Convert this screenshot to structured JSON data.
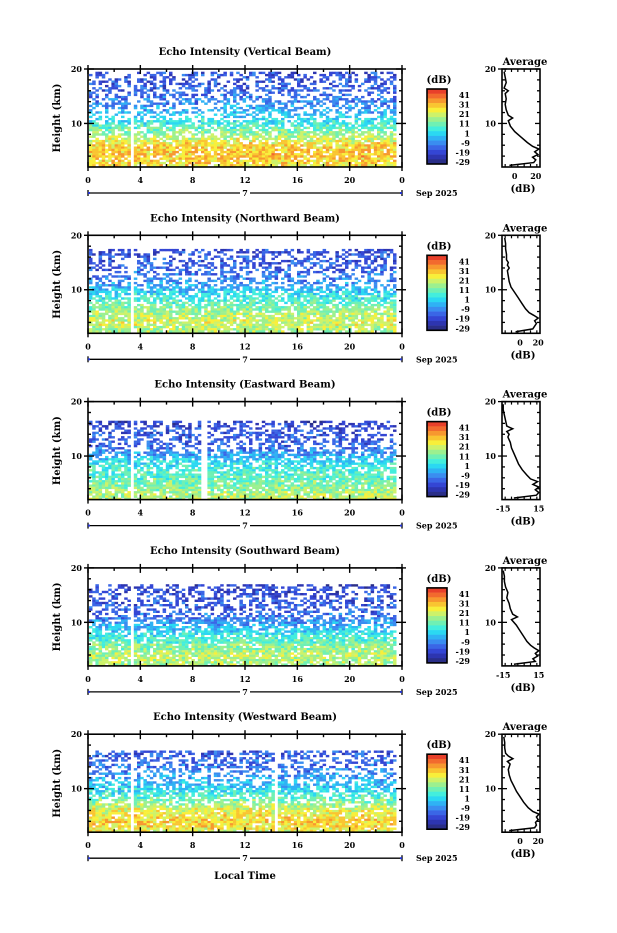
{
  "figure": {
    "x_axis_label": "Local Time",
    "date_label": "Sep 2025",
    "day_label": "7",
    "y_axis_label": "Height (km)",
    "colorbar_unit": "(dB)",
    "colorbar_ticks": [
      "41",
      "31",
      "21",
      "11",
      "1",
      "-9",
      "-19",
      "-29"
    ],
    "colorbar_colors": [
      "#e8402a",
      "#f26a2e",
      "#f7982f",
      "#f9c531",
      "#f8ef3a",
      "#cdf26a",
      "#9cf08f",
      "#6ff0b4",
      "#43eedd",
      "#2bd8f2",
      "#2fb2f4",
      "#3a8df0",
      "#3a66e6",
      "#3446d4",
      "#2d35b0",
      "#2a2e88"
    ],
    "average_title": "Average",
    "average_xlabel": "(dB)"
  },
  "chart_data": [
    {
      "type": "heatmap",
      "title": "Echo Intensity (Vertical Beam)",
      "xlabel": "",
      "ylabel": "Height (km)",
      "xlim": [
        0,
        24
      ],
      "ylim": [
        2,
        20
      ],
      "x_ticks": [
        "0",
        "4",
        "8",
        "12",
        "16",
        "20",
        "0"
      ],
      "y_ticks": [
        "10",
        "20"
      ],
      "zlim": [
        -29,
        41
      ],
      "gap_hours": [
        3.3
      ],
      "profile_db": [
        [
          2.5,
          22
        ],
        [
          4,
          26
        ],
        [
          6,
          24
        ],
        [
          8,
          14
        ],
        [
          10,
          4
        ],
        [
          12,
          -4
        ],
        [
          14,
          -10
        ],
        [
          16,
          -14
        ],
        [
          18,
          -16
        ]
      ],
      "top_km": 19.5,
      "avg": {
        "xticks": [
          "0",
          "20"
        ],
        "xlim": [
          -12,
          24
        ],
        "height_km": [
          2.3,
          2.8,
          3.3,
          3.8,
          4.3,
          4.8,
          5.3,
          5.8,
          6.5,
          7.5,
          8.5,
          9.5,
          10.5,
          11.0,
          11.5,
          12.5,
          13.5,
          14.5,
          15.5,
          16.0,
          16.5,
          17.5,
          18.5,
          19.5
        ],
        "values_db": [
          -5,
          18,
          20,
          17,
          22,
          19,
          23,
          17,
          12,
          6,
          0,
          -4,
          -6,
          -2,
          -6,
          -8,
          -9,
          -8,
          -9,
          -6,
          -10,
          -8,
          -9,
          -10
        ]
      }
    },
    {
      "type": "heatmap",
      "title": "Echo Intensity (Northward Beam)",
      "xlabel": "",
      "ylabel": "Height (km)",
      "xlim": [
        0,
        24
      ],
      "ylim": [
        2,
        20
      ],
      "x_ticks": [
        "0",
        "4",
        "8",
        "12",
        "16",
        "20",
        "0"
      ],
      "y_ticks": [
        "10",
        "20"
      ],
      "zlim": [
        -29,
        41
      ],
      "gap_hours": [
        3.3
      ],
      "profile_db": [
        [
          2.5,
          14
        ],
        [
          4,
          18
        ],
        [
          6,
          14
        ],
        [
          8,
          6
        ],
        [
          10,
          -2
        ],
        [
          12,
          -10
        ],
        [
          14,
          -14
        ],
        [
          16,
          -16
        ],
        [
          18,
          -18
        ]
      ],
      "top_km": 17.5,
      "avg": {
        "xticks": [
          "0",
          "20"
        ],
        "xlim": [
          -20,
          22
        ],
        "height_km": [
          2.3,
          2.8,
          3.3,
          3.8,
          4.3,
          4.8,
          5.3,
          5.8,
          6.5,
          7.5,
          8.5,
          9.5,
          10.5,
          11.5,
          12.5,
          13.5,
          14.0,
          14.5,
          15.0,
          15.5,
          16.5,
          17.5,
          18.5,
          19.5
        ],
        "values_db": [
          -5,
          14,
          16,
          18,
          16,
          20,
          15,
          10,
          6,
          2,
          -2,
          -6,
          -10,
          -12,
          -13,
          -14,
          -12,
          -14,
          -13,
          -15,
          -15,
          -16,
          -16,
          -17
        ]
      }
    },
    {
      "type": "heatmap",
      "title": "Echo Intensity (Eastward Beam)",
      "xlabel": "",
      "ylabel": "Height (km)",
      "xlim": [
        0,
        24
      ],
      "ylim": [
        2,
        20
      ],
      "x_ticks": [
        "0",
        "4",
        "8",
        "12",
        "16",
        "20",
        "0"
      ],
      "y_ticks": [
        "10",
        "20"
      ],
      "zlim": [
        -29,
        41
      ],
      "gap_hours": [
        3.3,
        8.8
      ],
      "profile_db": [
        [
          2.5,
          16
        ],
        [
          4,
          12
        ],
        [
          6,
          8
        ],
        [
          8,
          4
        ],
        [
          10,
          -4
        ],
        [
          12,
          -14
        ],
        [
          14,
          -16
        ],
        [
          16,
          -18
        ],
        [
          18,
          -24
        ]
      ],
      "top_km": 16.5,
      "avg": {
        "xticks": [
          "-15",
          "15"
        ],
        "xlim": [
          -16,
          16
        ],
        "height_km": [
          2.3,
          2.8,
          3.3,
          3.8,
          4.3,
          4.8,
          5.3,
          5.8,
          6.5,
          7.5,
          8.5,
          9.5,
          10.5,
          11.5,
          12.5,
          13.5,
          14.0,
          14.5,
          15.0,
          15.5,
          16.5,
          17.5,
          18.5,
          19.5
        ],
        "values_db": [
          -6,
          13,
          15,
          12,
          15,
          10,
          14,
          8,
          5,
          1,
          -2,
          -4,
          -6,
          -8,
          -9,
          -11,
          -10,
          -12,
          -7,
          -12,
          -13,
          -14,
          -15,
          -15
        ]
      }
    },
    {
      "type": "heatmap",
      "title": "Echo Intensity (Southward Beam)",
      "xlabel": "",
      "ylabel": "Height (km)",
      "xlim": [
        0,
        24
      ],
      "ylim": [
        2,
        20
      ],
      "x_ticks": [
        "0",
        "4",
        "8",
        "12",
        "16",
        "20",
        "0"
      ],
      "y_ticks": [
        "10",
        "20"
      ],
      "zlim": [
        -29,
        41
      ],
      "gap_hours": [
        3.3
      ],
      "profile_db": [
        [
          2.5,
          14
        ],
        [
          4,
          16
        ],
        [
          6,
          10
        ],
        [
          8,
          2
        ],
        [
          10,
          -8
        ],
        [
          12,
          -14
        ],
        [
          14,
          -16
        ],
        [
          16,
          -18
        ],
        [
          18,
          -20
        ]
      ],
      "top_km": 17.0,
      "avg": {
        "xticks": [
          "-15",
          "15"
        ],
        "xlim": [
          -16,
          16
        ],
        "height_km": [
          2.3,
          2.8,
          3.3,
          3.8,
          4.3,
          4.8,
          5.3,
          5.8,
          6.5,
          7.5,
          8.5,
          9.5,
          10.5,
          11.0,
          11.5,
          12.5,
          13.5,
          14.5,
          15.5,
          16.5,
          17.5,
          18.5,
          19.5
        ],
        "values_db": [
          -6,
          12,
          10,
          14,
          12,
          15,
          11,
          8,
          5,
          2,
          -1,
          -4,
          -8,
          -3,
          -7,
          -9,
          -10,
          -12,
          -11,
          -13,
          -14,
          -14,
          -15
        ]
      }
    },
    {
      "type": "heatmap",
      "title": "Echo Intensity (Westward Beam)",
      "xlabel": "Local Time",
      "ylabel": "Height (km)",
      "xlim": [
        0,
        24
      ],
      "ylim": [
        2,
        20
      ],
      "x_ticks": [
        "0",
        "4",
        "8",
        "12",
        "16",
        "20",
        "0"
      ],
      "y_ticks": [
        "10",
        "20"
      ],
      "zlim": [
        -29,
        41
      ],
      "gap_hours": [
        3.3,
        14.3
      ],
      "profile_db": [
        [
          2.5,
          20
        ],
        [
          4,
          24
        ],
        [
          6,
          20
        ],
        [
          8,
          10
        ],
        [
          10,
          0
        ],
        [
          12,
          -6
        ],
        [
          14,
          -12
        ],
        [
          16,
          -14
        ],
        [
          18,
          -18
        ]
      ],
      "top_km": 17.0,
      "avg": {
        "xticks": [
          "0",
          "20"
        ],
        "xlim": [
          -20,
          22
        ],
        "height_km": [
          2.3,
          2.8,
          3.3,
          3.8,
          4.3,
          4.8,
          5.3,
          5.8,
          6.5,
          7.5,
          8.5,
          9.5,
          10.5,
          11.5,
          12.5,
          13.5,
          14.5,
          15.0,
          15.5,
          16.0,
          16.5,
          17.5,
          18.5,
          19.5
        ],
        "values_db": [
          -12,
          16,
          18,
          17,
          20,
          18,
          21,
          14,
          9,
          4,
          0,
          -4,
          -7,
          -10,
          -12,
          -13,
          -11,
          -14,
          -8,
          -13,
          -16,
          -17,
          -17,
          -18
        ]
      }
    }
  ]
}
